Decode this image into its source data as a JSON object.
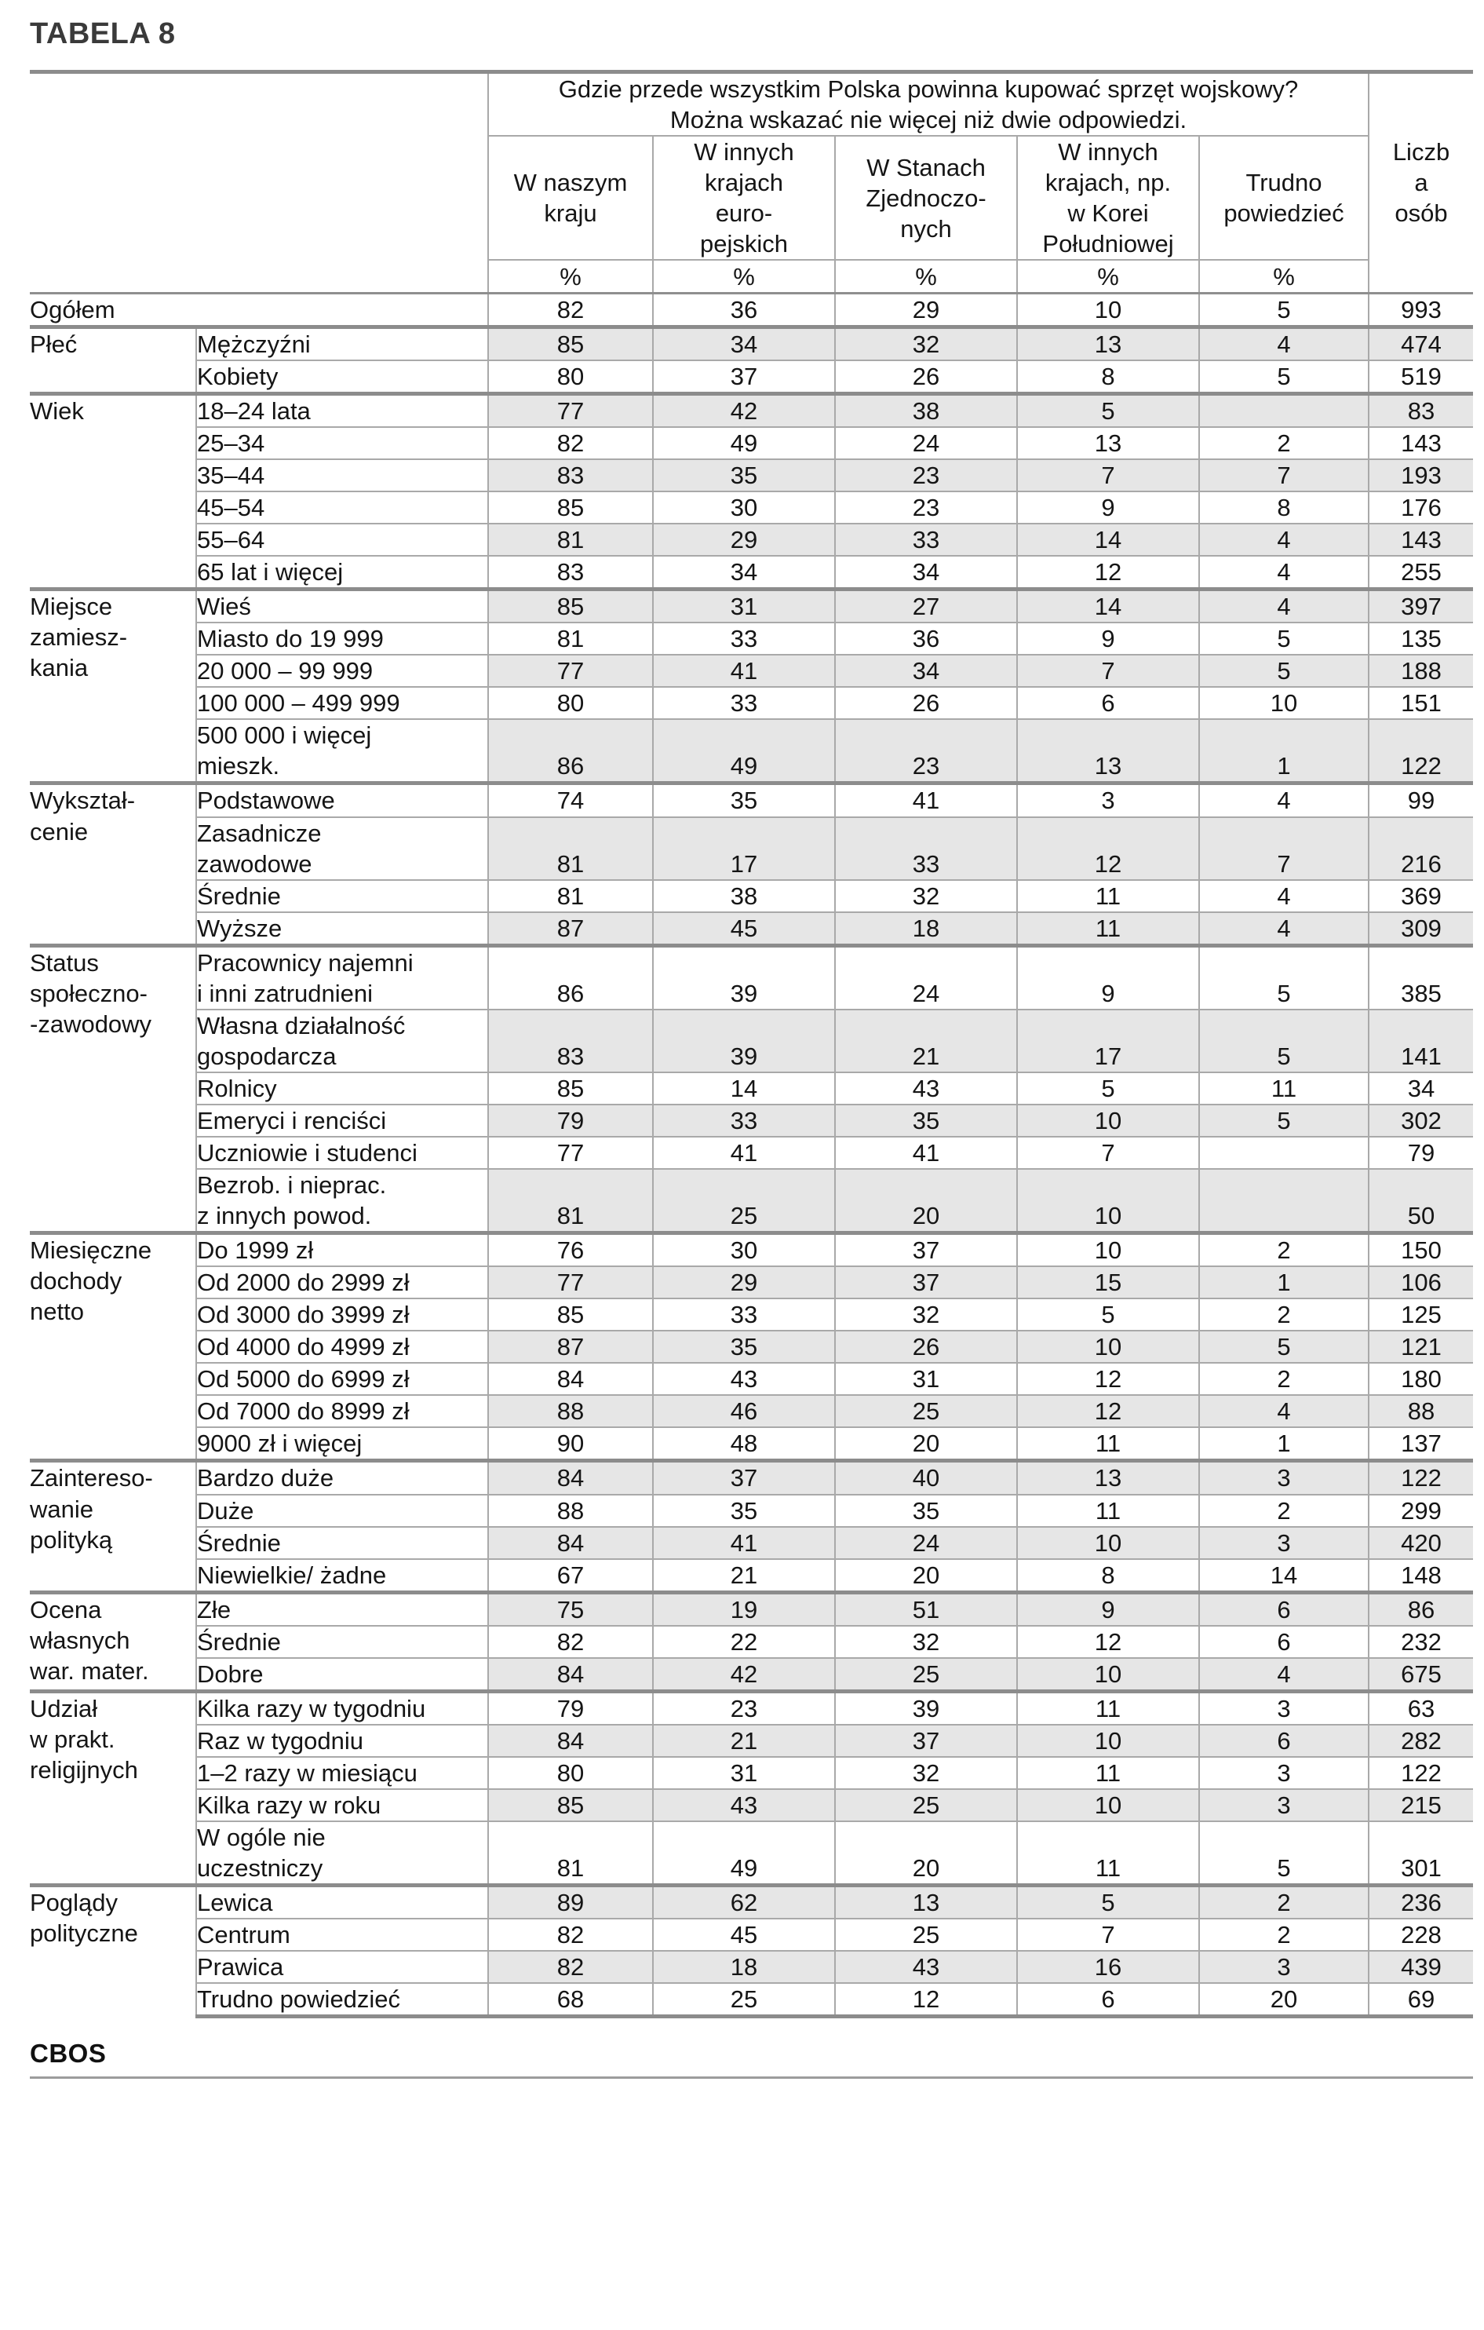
{
  "title": "TABELA 8",
  "footer": {
    "cbos": "CBOS"
  },
  "header": {
    "question": "Gdzie przede wszystkim Polska powinna kupować sprzęt wojskowy?\nMożna wskazać nie więcej niż dwie odpowiedzi.",
    "columns": [
      "W naszym\nkraju",
      "W innych\nkrajach\neuro-\npejskich",
      "W Stanach\nZjednoczo-\nnych",
      "W innych\nkrajach, np.\nw Korei\nPołudniowej",
      "Trudno\npowiedzieć"
    ],
    "count": "Liczb\na\nosób",
    "percent": "%"
  },
  "groups": [
    {
      "label": "",
      "rows": [
        {
          "label": "Ogółem",
          "values": [
            "82",
            "36",
            "29",
            "10",
            "5",
            "993"
          ]
        }
      ]
    },
    {
      "label": "Płeć",
      "rows": [
        {
          "label": "Mężczyźni",
          "values": [
            "85",
            "34",
            "32",
            "13",
            "4",
            "474"
          ]
        },
        {
          "label": "Kobiety",
          "values": [
            "80",
            "37",
            "26",
            "8",
            "5",
            "519"
          ]
        }
      ]
    },
    {
      "label": "Wiek",
      "rows": [
        {
          "label": "18–24 lata",
          "values": [
            "77",
            "42",
            "38",
            "5",
            "",
            "83"
          ]
        },
        {
          "label": "25–34",
          "values": [
            "82",
            "49",
            "24",
            "13",
            "2",
            "143"
          ]
        },
        {
          "label": "35–44",
          "values": [
            "83",
            "35",
            "23",
            "7",
            "7",
            "193"
          ]
        },
        {
          "label": "45–54",
          "values": [
            "85",
            "30",
            "23",
            "9",
            "8",
            "176"
          ]
        },
        {
          "label": "55–64",
          "values": [
            "81",
            "29",
            "33",
            "14",
            "4",
            "143"
          ]
        },
        {
          "label": "65 lat i więcej",
          "values": [
            "83",
            "34",
            "34",
            "12",
            "4",
            "255"
          ]
        }
      ]
    },
    {
      "label": "Miejsce\nzamiesz-\nkania",
      "rows": [
        {
          "label": "Wieś",
          "values": [
            "85",
            "31",
            "27",
            "14",
            "4",
            "397"
          ]
        },
        {
          "label": "Miasto do 19 999",
          "values": [
            "81",
            "33",
            "36",
            "9",
            "5",
            "135"
          ]
        },
        {
          "label": "20 000 – 99 999",
          "values": [
            "77",
            "41",
            "34",
            "7",
            "5",
            "188"
          ]
        },
        {
          "label": "100 000 – 499 999",
          "values": [
            "80",
            "33",
            "26",
            "6",
            "10",
            "151"
          ]
        },
        {
          "label": "500 000 i więcej\nmieszk.",
          "values": [
            "86",
            "49",
            "23",
            "13",
            "1",
            "122"
          ]
        }
      ]
    },
    {
      "label": "Wykształ-\ncenie",
      "rows": [
        {
          "label": "Podstawowe",
          "values": [
            "74",
            "35",
            "41",
            "3",
            "4",
            "99"
          ]
        },
        {
          "label": "Zasadnicze\nzawodowe",
          "values": [
            "81",
            "17",
            "33",
            "12",
            "7",
            "216"
          ]
        },
        {
          "label": "Średnie",
          "values": [
            "81",
            "38",
            "32",
            "11",
            "4",
            "369"
          ]
        },
        {
          "label": "Wyższe",
          "values": [
            "87",
            "45",
            "18",
            "11",
            "4",
            "309"
          ]
        }
      ]
    },
    {
      "label": "Status\nspołeczno-\n-zawodowy",
      "rows": [
        {
          "label": "Pracownicy najemni\ni inni zatrudnieni",
          "values": [
            "86",
            "39",
            "24",
            "9",
            "5",
            "385"
          ]
        },
        {
          "label": "Własna działalność\ngospodarcza",
          "values": [
            "83",
            "39",
            "21",
            "17",
            "5",
            "141"
          ]
        },
        {
          "label": "Rolnicy",
          "values": [
            "85",
            "14",
            "43",
            "5",
            "11",
            "34"
          ]
        },
        {
          "label": "Emeryci i renciści",
          "values": [
            "79",
            "33",
            "35",
            "10",
            "5",
            "302"
          ]
        },
        {
          "label": "Uczniowie i studenci",
          "values": [
            "77",
            "41",
            "41",
            "7",
            "",
            "79"
          ]
        },
        {
          "label": "Bezrob. i nieprac.\nz innych powod.",
          "values": [
            "81",
            "25",
            "20",
            "10",
            "",
            "50"
          ]
        }
      ]
    },
    {
      "label": "Miesięczne\ndochody\nnetto",
      "rows": [
        {
          "label": "Do 1999 zł",
          "values": [
            "76",
            "30",
            "37",
            "10",
            "2",
            "150"
          ]
        },
        {
          "label": "Od 2000 do 2999 zł",
          "values": [
            "77",
            "29",
            "37",
            "15",
            "1",
            "106"
          ]
        },
        {
          "label": "Od 3000 do 3999 zł",
          "values": [
            "85",
            "33",
            "32",
            "5",
            "2",
            "125"
          ]
        },
        {
          "label": "Od 4000 do 4999 zł",
          "values": [
            "87",
            "35",
            "26",
            "10",
            "5",
            "121"
          ]
        },
        {
          "label": "Od 5000 do 6999 zł",
          "values": [
            "84",
            "43",
            "31",
            "12",
            "2",
            "180"
          ]
        },
        {
          "label": "Od 7000 do 8999 zł",
          "values": [
            "88",
            "46",
            "25",
            "12",
            "4",
            "88"
          ]
        },
        {
          "label": "9000 zł i więcej",
          "values": [
            "90",
            "48",
            "20",
            "11",
            "1",
            "137"
          ]
        }
      ]
    },
    {
      "label": "Zaintereso-\nwanie\npolityką",
      "rows": [
        {
          "label": "Bardzo duże",
          "values": [
            "84",
            "37",
            "40",
            "13",
            "3",
            "122"
          ]
        },
        {
          "label": "Duże",
          "values": [
            "88",
            "35",
            "35",
            "11",
            "2",
            "299"
          ]
        },
        {
          "label": "Średnie",
          "values": [
            "84",
            "41",
            "24",
            "10",
            "3",
            "420"
          ]
        },
        {
          "label": "Niewielkie/ żadne",
          "values": [
            "67",
            "21",
            "20",
            "8",
            "14",
            "148"
          ]
        }
      ]
    },
    {
      "label": "Ocena\nwłasnych\nwar. mater.",
      "rows": [
        {
          "label": "Złe",
          "values": [
            "75",
            "19",
            "51",
            "9",
            "6",
            "86"
          ]
        },
        {
          "label": "Średnie",
          "values": [
            "82",
            "22",
            "32",
            "12",
            "6",
            "232"
          ]
        },
        {
          "label": "Dobre",
          "values": [
            "84",
            "42",
            "25",
            "10",
            "4",
            "675"
          ]
        }
      ]
    },
    {
      "label": "Udział\nw prakt.\nreligijnych",
      "rows": [
        {
          "label": "Kilka razy w tygodniu",
          "values": [
            "79",
            "23",
            "39",
            "11",
            "3",
            "63"
          ]
        },
        {
          "label": "Raz w tygodniu",
          "values": [
            "84",
            "21",
            "37",
            "10",
            "6",
            "282"
          ]
        },
        {
          "label": "1–2 razy w miesiącu",
          "values": [
            "80",
            "31",
            "32",
            "11",
            "3",
            "122"
          ]
        },
        {
          "label": "Kilka razy w roku",
          "values": [
            "85",
            "43",
            "25",
            "10",
            "3",
            "215"
          ]
        },
        {
          "label": "W ogóle nie\nuczestniczy",
          "values": [
            "81",
            "49",
            "20",
            "11",
            "5",
            "301"
          ]
        }
      ]
    },
    {
      "label": "Poglądy\npolityczne",
      "rows": [
        {
          "label": "Lewica",
          "values": [
            "89",
            "62",
            "13",
            "5",
            "2",
            "236"
          ]
        },
        {
          "label": "Centrum",
          "values": [
            "82",
            "45",
            "25",
            "7",
            "2",
            "228"
          ]
        },
        {
          "label": "Prawica",
          "values": [
            "82",
            "18",
            "43",
            "16",
            "3",
            "439"
          ]
        },
        {
          "label": "Trudno powiedzieć",
          "values": [
            "68",
            "25",
            "12",
            "6",
            "20",
            "69"
          ]
        }
      ]
    }
  ]
}
